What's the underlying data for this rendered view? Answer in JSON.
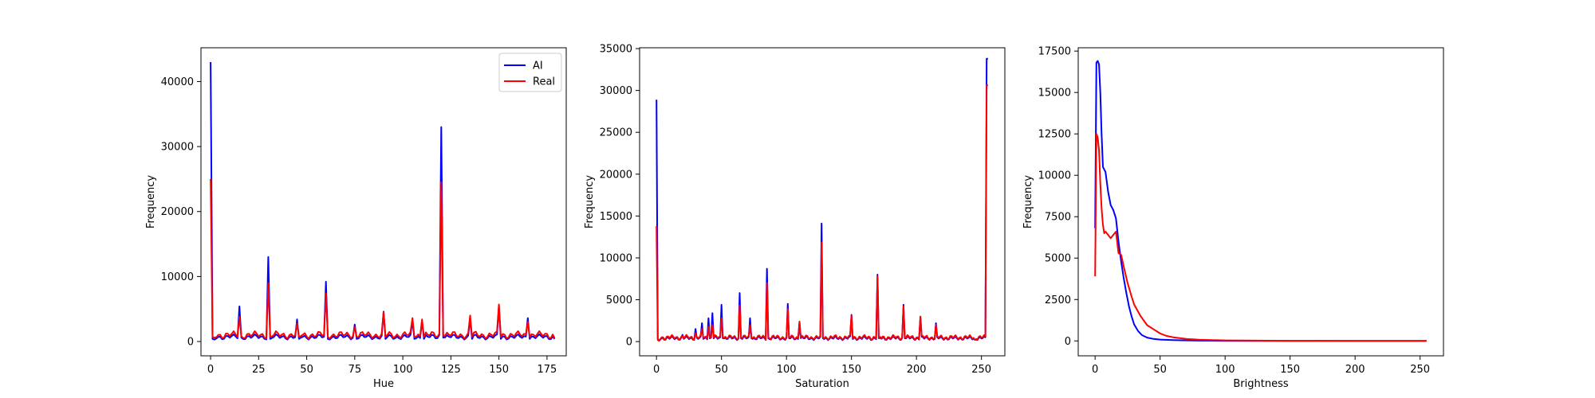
{
  "chart_data": [
    {
      "type": "line",
      "xlabel": "Hue",
      "ylabel": "Frequency",
      "xlim": [
        -5,
        185
      ],
      "ylim": [
        -2200,
        45200
      ],
      "xticks": [
        0,
        25,
        50,
        75,
        100,
        125,
        150,
        175
      ],
      "yticks": [
        0,
        10000,
        20000,
        30000,
        40000
      ],
      "legend": {
        "placement": "top-right",
        "entries": [
          "AI",
          "Real"
        ]
      },
      "series": [
        {
          "name": "AI",
          "color": "#0000ff",
          "baseline": 700,
          "x": [
            0,
            1,
            2,
            15,
            16,
            30,
            31,
            45,
            46,
            60,
            61,
            75,
            76,
            90,
            91,
            105,
            106,
            110,
            111,
            119,
            120,
            121,
            135,
            136,
            150,
            151,
            165,
            166,
            179
          ],
          "y": [
            43000,
            400,
            300,
            5400,
            600,
            13000,
            400,
            3400,
            400,
            9200,
            400,
            2600,
            400,
            4600,
            400,
            3200,
            400,
            3200,
            400,
            1000,
            33000,
            600,
            3500,
            400,
            5400,
            400,
            3600,
            400,
            400
          ]
        },
        {
          "name": "Real",
          "color": "#ff0000",
          "baseline": 1000,
          "x": [
            0,
            1,
            2,
            15,
            16,
            30,
            31,
            45,
            46,
            60,
            61,
            75,
            76,
            90,
            91,
            105,
            106,
            110,
            111,
            119,
            120,
            121,
            135,
            136,
            150,
            151,
            165,
            166,
            179
          ],
          "y": [
            25000,
            700,
            600,
            3800,
            800,
            9000,
            700,
            2800,
            700,
            7400,
            700,
            2200,
            700,
            4500,
            700,
            3600,
            700,
            3400,
            700,
            1200,
            24500,
            900,
            4000,
            700,
            5700,
            700,
            3000,
            700,
            500
          ]
        }
      ]
    },
    {
      "type": "line",
      "xlabel": "Saturation",
      "ylabel": "Frequency",
      "xlim": [
        -13,
        268
      ],
      "ylim": [
        -1700,
        35100
      ],
      "xticks": [
        0,
        50,
        100,
        150,
        200,
        250
      ],
      "yticks": [
        0,
        5000,
        10000,
        15000,
        20000,
        25000,
        30000,
        35000
      ],
      "series": [
        {
          "name": "AI",
          "color": "#0000ff",
          "baseline": 400,
          "x": [
            0,
            1,
            2,
            20,
            30,
            35,
            40,
            43,
            50,
            51,
            64,
            65,
            72,
            73,
            85,
            86,
            101,
            102,
            110,
            127,
            128,
            150,
            170,
            171,
            190,
            191,
            203,
            215,
            245,
            254,
            255
          ],
          "y": [
            28900,
            300,
            100,
            800,
            1500,
            2200,
            2800,
            3400,
            4400,
            400,
            5800,
            400,
            2800,
            400,
            8700,
            400,
            4500,
            400,
            2300,
            14100,
            400,
            3200,
            8000,
            400,
            4400,
            400,
            2900,
            2200,
            200,
            33800,
            33800
          ]
        },
        {
          "name": "Real",
          "color": "#ff0000",
          "baseline": 500,
          "x": [
            0,
            1,
            2,
            20,
            30,
            35,
            40,
            43,
            50,
            51,
            64,
            65,
            72,
            73,
            85,
            86,
            101,
            102,
            110,
            127,
            128,
            150,
            170,
            171,
            190,
            191,
            203,
            215,
            245,
            254,
            255
          ],
          "y": [
            13800,
            200,
            100,
            700,
            1000,
            1500,
            1800,
            2000,
            2800,
            500,
            4300,
            500,
            2000,
            500,
            7000,
            500,
            3900,
            500,
            2400,
            11800,
            500,
            3100,
            7800,
            500,
            4200,
            500,
            3000,
            2000,
            200,
            30600,
            30600
          ]
        }
      ]
    },
    {
      "type": "line",
      "xlabel": "Brightness",
      "ylabel": "Frequency",
      "xlim": [
        -13,
        268
      ],
      "ylim": [
        -900,
        17700
      ],
      "xticks": [
        0,
        50,
        100,
        150,
        200,
        250
      ],
      "yticks": [
        0,
        2500,
        5000,
        7500,
        10000,
        12500,
        15000,
        17500
      ],
      "series": [
        {
          "name": "AI",
          "color": "#0000ff",
          "x": [
            0,
            1,
            2,
            3,
            4,
            5,
            6,
            8,
            10,
            12,
            14,
            16,
            18,
            20,
            22,
            24,
            26,
            28,
            30,
            33,
            36,
            40,
            45,
            50,
            60,
            70,
            80,
            100,
            150,
            200,
            255
          ],
          "y": [
            6800,
            16800,
            16900,
            16700,
            15000,
            12500,
            10500,
            10200,
            9000,
            8200,
            7900,
            7400,
            6000,
            4800,
            3800,
            2900,
            2100,
            1500,
            1000,
            600,
            350,
            200,
            120,
            80,
            50,
            30,
            20,
            10,
            5,
            5,
            5
          ]
        },
        {
          "name": "Real",
          "color": "#ff0000",
          "x": [
            0,
            1,
            2,
            3,
            4,
            5,
            6,
            7,
            8,
            10,
            12,
            14,
            16,
            18,
            20,
            22,
            25,
            28,
            30,
            35,
            40,
            45,
            50,
            55,
            60,
            70,
            80,
            100,
            150,
            200,
            255
          ],
          "y": [
            3900,
            12500,
            12300,
            11500,
            9500,
            8000,
            7000,
            6500,
            6600,
            6400,
            6200,
            6400,
            6600,
            5300,
            5200,
            4500,
            3500,
            2700,
            2200,
            1500,
            950,
            700,
            450,
            300,
            220,
            120,
            70,
            30,
            10,
            5,
            5
          ]
        }
      ]
    }
  ]
}
